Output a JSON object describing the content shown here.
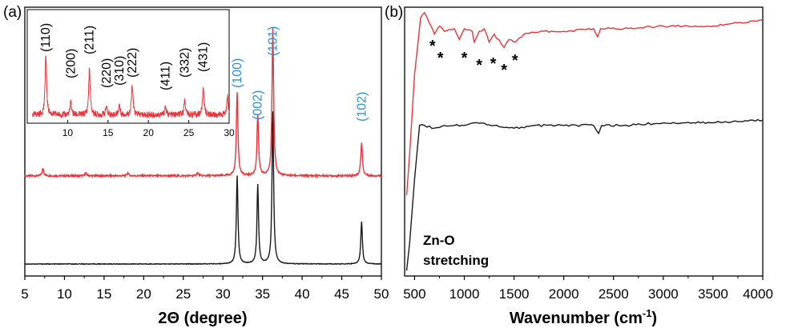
{
  "chart_data": [
    {
      "panel": "(a)",
      "type": "line",
      "xlabel": "2Θ (degree)",
      "ylabel": "",
      "xlim": [
        5,
        50
      ],
      "xticks": [
        "5",
        "10",
        "15",
        "20",
        "25",
        "30",
        "35",
        "40",
        "45",
        "50"
      ],
      "series": [
        {
          "color": "#e8343a",
          "offset": 0.58,
          "peaks": [
            [
              7.3,
              0.05
            ],
            [
              12.7,
              0.02
            ],
            [
              18.0,
              0.02
            ],
            [
              26.8,
              0.02
            ],
            [
              31.8,
              0.55
            ],
            [
              34.4,
              0.4
            ],
            [
              36.3,
              0.97
            ],
            [
              47.5,
              0.22
            ]
          ]
        },
        {
          "color": "#1a1a1a",
          "offset": 0.0,
          "peaks": [
            [
              31.8,
              0.58
            ],
            [
              34.4,
              0.52
            ],
            [
              36.3,
              1.0
            ],
            [
              47.5,
              0.28
            ]
          ]
        }
      ],
      "peak_labels": [
        {
          "text": "(100)",
          "x": 31.8,
          "color": "#2f8fd8"
        },
        {
          "text": "(002)",
          "x": 34.4,
          "color": "#2f8fd8"
        },
        {
          "text": "(101)",
          "x": 36.3,
          "color": "#2f8fd8"
        },
        {
          "text": "(102)",
          "x": 47.5,
          "color": "#2f8fd8"
        }
      ],
      "inset": {
        "xlim": [
          5,
          30
        ],
        "xticks": [
          "10",
          "15",
          "20",
          "25",
          "30"
        ],
        "color": "#e8343a",
        "peaks": [
          [
            7.3,
            0.85
          ],
          [
            10.4,
            0.18
          ],
          [
            12.7,
            0.65
          ],
          [
            14.8,
            0.12
          ],
          [
            16.4,
            0.14
          ],
          [
            18.0,
            0.42
          ],
          [
            22.1,
            0.12
          ],
          [
            24.5,
            0.22
          ],
          [
            26.8,
            0.4
          ],
          [
            29.8,
            0.26
          ]
        ],
        "peak_labels": [
          "(110)",
          "(200)",
          "(211)",
          "(220)",
          "(310)",
          "(222)",
          "(411)",
          "(332)",
          "(431)"
        ],
        "peak_label_x": [
          7.3,
          10.4,
          12.7,
          14.8,
          16.4,
          18.0,
          22.1,
          24.5,
          26.8
        ]
      }
    },
    {
      "panel": "(b)",
      "type": "line",
      "xlabel": "Wavenumber (cm",
      "xlabel_sup": "-1",
      "xlabel_end": ")",
      "ylabel": "",
      "xlim": [
        400,
        4000
      ],
      "xticks": [
        "500",
        "1000",
        "1500",
        "2000",
        "2500",
        "3000",
        "3500",
        "4000"
      ],
      "series": [
        {
          "color": "#e8343a",
          "points": [
            [
              420,
              0.3
            ],
            [
              450,
              0.45
            ],
            [
              500,
              0.75
            ],
            [
              560,
              0.96
            ],
            [
              600,
              0.98
            ],
            [
              650,
              0.94
            ],
            [
              700,
              0.9
            ],
            [
              750,
              0.93
            ],
            [
              800,
              0.91
            ],
            [
              900,
              0.92
            ],
            [
              950,
              0.88
            ],
            [
              1000,
              0.92
            ],
            [
              1080,
              0.91
            ],
            [
              1100,
              0.87
            ],
            [
              1150,
              0.91
            ],
            [
              1200,
              0.92
            ],
            [
              1250,
              0.87
            ],
            [
              1300,
              0.9
            ],
            [
              1400,
              0.85
            ],
            [
              1450,
              0.88
            ],
            [
              1500,
              0.87
            ],
            [
              1600,
              0.9
            ],
            [
              1800,
              0.91
            ],
            [
              2000,
              0.91
            ],
            [
              2300,
              0.92
            ],
            [
              2340,
              0.89
            ],
            [
              2370,
              0.92
            ],
            [
              2600,
              0.92
            ],
            [
              3000,
              0.93
            ],
            [
              3500,
              0.93
            ],
            [
              3700,
              0.94
            ],
            [
              4000,
              0.95
            ]
          ]
        },
        {
          "color": "#1a1a1a",
          "points": [
            [
              420,
              0.02
            ],
            [
              450,
              0.12
            ],
            [
              500,
              0.36
            ],
            [
              550,
              0.56
            ],
            [
              600,
              0.56
            ],
            [
              700,
              0.55
            ],
            [
              800,
              0.56
            ],
            [
              900,
              0.56
            ],
            [
              1000,
              0.56
            ],
            [
              1100,
              0.57
            ],
            [
              1300,
              0.56
            ],
            [
              1500,
              0.55
            ],
            [
              1700,
              0.56
            ],
            [
              2000,
              0.56
            ],
            [
              2300,
              0.56
            ],
            [
              2350,
              0.53
            ],
            [
              2380,
              0.56
            ],
            [
              2600,
              0.56
            ],
            [
              3000,
              0.57
            ],
            [
              3500,
              0.57
            ],
            [
              4000,
              0.58
            ]
          ]
        }
      ],
      "stars_x": [
        680,
        760,
        1000,
        1150,
        1290,
        1400,
        1510
      ],
      "annotation": [
        "Zn-O",
        "stretching"
      ]
    }
  ]
}
